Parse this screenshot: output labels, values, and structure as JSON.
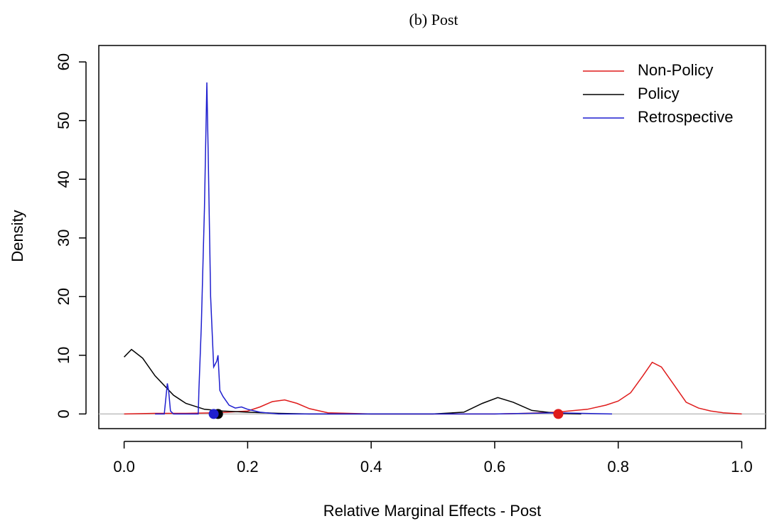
{
  "chart_data": {
    "type": "line",
    "title": "(b) Post",
    "x_label": "Relative Marginal Effects - Post",
    "y_label": "Density",
    "xlim": [
      -0.041,
      1.0386
    ],
    "ylim": [
      -2.5,
      62.8
    ],
    "xticks": [
      {
        "value": 0,
        "label": "0.0"
      },
      0.2,
      0.4,
      0.6,
      0.8,
      {
        "value": 1,
        "label": "1.0"
      }
    ],
    "yticks": [
      0,
      10,
      20,
      30,
      40,
      50,
      60
    ],
    "hline": {
      "y": 0,
      "color": "#bebebe"
    },
    "legend": "top-right",
    "series": [
      {
        "name": "Non-Policy",
        "color": "#df1b1b",
        "x": [
          0,
          0.05,
          0.1,
          0.15,
          0.2,
          0.22,
          0.24,
          0.26,
          0.28,
          0.3,
          0.33,
          0.4,
          0.5,
          0.6,
          0.65,
          0.7,
          0.75,
          0.78,
          0.8,
          0.82,
          0.84,
          0.855,
          0.87,
          0.89,
          0.91,
          0.93,
          0.95,
          0.97,
          1.0
        ],
        "values": [
          0,
          0.1,
          0.1,
          0.2,
          0.5,
          1.2,
          2.1,
          2.4,
          1.8,
          0.9,
          0.2,
          0,
          0,
          0,
          0.1,
          0.3,
          0.8,
          1.5,
          2.2,
          3.6,
          6.5,
          8.8,
          8.0,
          5.0,
          2.0,
          1.0,
          0.5,
          0.2,
          0
        ],
        "mean": {
          "x": 0.703,
          "y": 0
        }
      },
      {
        "name": "Policy",
        "color": "#000000",
        "x": [
          0,
          0.012,
          0.03,
          0.05,
          0.08,
          0.1,
          0.13,
          0.16,
          0.2,
          0.25,
          0.3,
          0.5,
          0.55,
          0.58,
          0.605,
          0.63,
          0.66,
          0.7,
          0.74
        ],
        "values": [
          9.7,
          11,
          9.5,
          6.5,
          3.2,
          1.8,
          0.8,
          0.5,
          0.3,
          0.1,
          0,
          0,
          0.3,
          1.8,
          2.8,
          2,
          0.6,
          0.1,
          0
        ],
        "mean": {
          "x": 0.152,
          "y": 0
        }
      },
      {
        "name": "Retrospective",
        "color": "#1f1fcf",
        "x": [
          0.05,
          0.065,
          0.07,
          0.072,
          0.075,
          0.08,
          0.12,
          0.121,
          0.125,
          0.13,
          0.134,
          0.136,
          0.14,
          0.145,
          0.15,
          0.152,
          0.155,
          0.16,
          0.17,
          0.18,
          0.19,
          0.2,
          0.22,
          0.25,
          0.4,
          0.6,
          0.7,
          0.79
        ],
        "values": [
          0,
          0,
          5.2,
          4,
          0.5,
          0,
          0,
          4,
          15,
          35,
          56.5,
          45,
          20,
          8,
          9,
          10,
          4,
          3,
          1.5,
          1,
          1.2,
          0.8,
          0.3,
          0,
          0,
          0,
          0.2,
          0
        ],
        "mean": {
          "x": 0.145,
          "y": 0
        }
      }
    ]
  }
}
